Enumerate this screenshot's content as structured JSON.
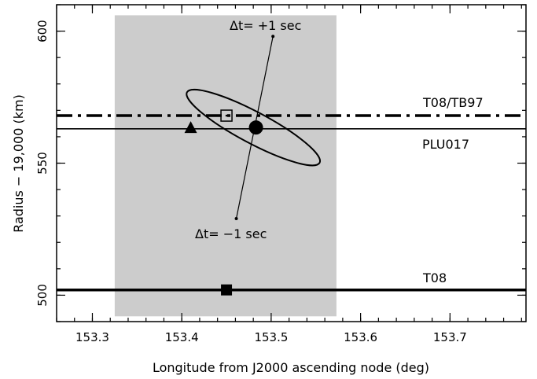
{
  "chart_data": {
    "type": "scatter",
    "xlabel": "Longitude from J2000 ascending node (deg)",
    "ylabel": "Radius − 19,000 (km)",
    "xlim": [
      153.26,
      153.785
    ],
    "ylim": [
      490,
      610
    ],
    "xticks": [
      153.3,
      153.4,
      153.5,
      153.6,
      153.7
    ],
    "yticks": [
      500,
      550,
      600
    ],
    "x_tick_labels": [
      "153.3",
      "153.4",
      "153.5",
      "153.6",
      "153.7"
    ],
    "y_tick_labels": [
      "500",
      "550",
      "600"
    ],
    "shaded_region": {
      "x": [
        153.325,
        153.573
      ],
      "y": [
        492,
        606
      ],
      "color": "#cccccc"
    },
    "reference_lines": [
      {
        "label": "T08/TB97",
        "y": 568,
        "style": "dashdot",
        "width": 3.5
      },
      {
        "label": "PLU017",
        "y": 563,
        "style": "solid",
        "width": 1.6
      },
      {
        "label": "T08",
        "y": 502,
        "style": "solid",
        "width": 3.5
      }
    ],
    "points": [
      {
        "marker": "circle",
        "x": 153.483,
        "y": 563.5
      },
      {
        "marker": "triangle",
        "x": 153.41,
        "y": 563.5
      },
      {
        "marker": "open-square",
        "x": 153.45,
        "y": 568
      },
      {
        "marker": "filled-square",
        "x": 153.45,
        "y": 502
      }
    ],
    "timing_line": {
      "start": {
        "x": 153.461,
        "y": 529
      },
      "end": {
        "x": 153.502,
        "y": 598
      },
      "start_label": "Δt=  −1 sec",
      "end_label": "Δt=  +1 sec"
    },
    "ellipse": {
      "cx": 153.48,
      "cy": 563.5,
      "semi_major": 0.084,
      "semi_minor": 0.013,
      "angle_deg": -28
    }
  }
}
